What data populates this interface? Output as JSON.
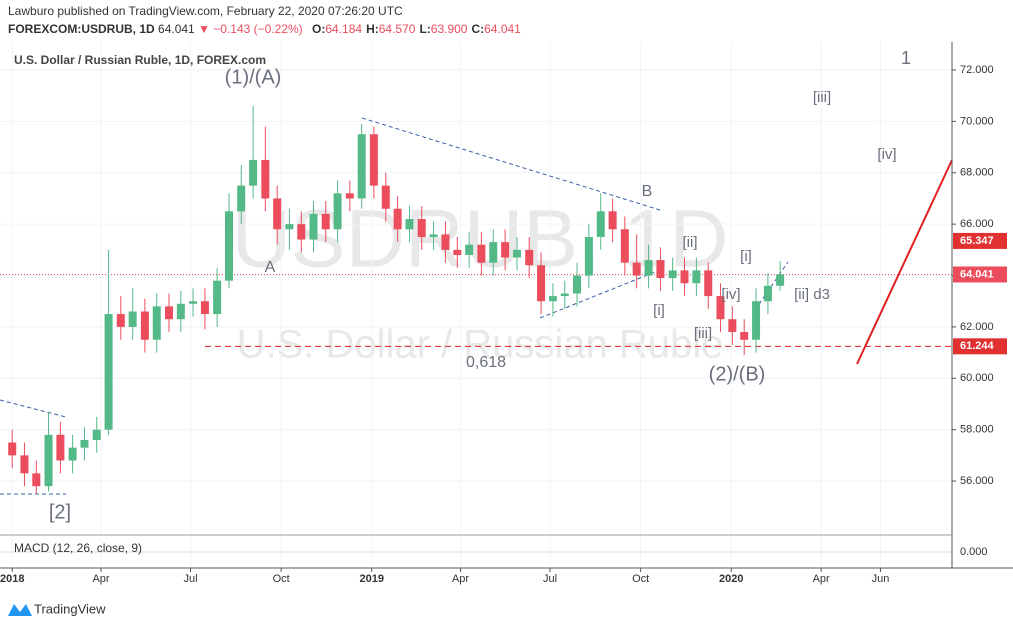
{
  "chart_data": {
    "type": "candlestick",
    "header": {
      "publisher": "Lawburo published on TradingView.com, February 22, 2020 07:26:20 UTC",
      "symbol": "FOREXCOM:USDRUB, 1D",
      "last": "64.041",
      "change": "▼ −0.143 (−0.22%)",
      "ohlc": [
        [
          "O:",
          "64.184"
        ],
        [
          "H:",
          "64.570"
        ],
        [
          "L:",
          "63.900"
        ],
        [
          "C:",
          "64.041"
        ]
      ]
    },
    "title": "U.S. Dollar / Russian Ruble, 1D, FOREX.com",
    "watermark": [
      "USDRUB, 1D",
      "U.S. Dollar / Russian Ruble"
    ],
    "annotations": [
      "(1)/(A)",
      "A",
      "B",
      "[ii]",
      "[i]",
      "[i]",
      "[iii]",
      "[iv]",
      "[ii] d3",
      "0,618",
      "(2)/(B)",
      "[2]",
      "1",
      "[iii]",
      "[iv]"
    ],
    "indicator": "MACD (12, 26, close, 9)",
    "footer": "TradingView",
    "up_color": "#53b987",
    "down_color": "#eb4d5c",
    "x": [
      2018.0,
      2018.034,
      2018.067,
      2018.101,
      2018.134,
      2018.168,
      2018.201,
      2018.235,
      2018.268,
      2018.302,
      2018.335,
      2018.369,
      2018.402,
      2018.436,
      2018.469,
      2018.503,
      2018.536,
      2018.57,
      2018.603,
      2018.637,
      2018.67,
      2018.704,
      2018.737,
      2018.771,
      2018.804,
      2018.838,
      2018.872,
      2018.905,
      2018.939,
      2018.972,
      2019.006,
      2019.039,
      2019.072,
      2019.105,
      2019.139,
      2019.172,
      2019.205,
      2019.238,
      2019.271,
      2019.305,
      2019.338,
      2019.371,
      2019.404,
      2019.438,
      2019.471,
      2019.504,
      2019.537,
      2019.571,
      2019.604,
      2019.637,
      2019.67,
      2019.704,
      2019.737,
      2019.77,
      2019.803,
      2019.837,
      2019.87,
      2019.903,
      2019.936,
      2019.97,
      2020.003,
      2020.036,
      2020.069,
      2020.102,
      2020.136
    ],
    "open": [
      57.5,
      57.0,
      56.3,
      55.8,
      57.8,
      56.8,
      57.3,
      57.6,
      58.0,
      62.5,
      62.0,
      62.6,
      61.5,
      62.8,
      62.3,
      62.9,
      63.0,
      62.5,
      63.8,
      66.5,
      67.5,
      68.5,
      67.0,
      65.8,
      66.0,
      65.4,
      66.4,
      65.8,
      67.2,
      67.0,
      69.5,
      67.5,
      66.6,
      65.8,
      66.2,
      65.5,
      65.6,
      65.0,
      64.8,
      65.2,
      64.5,
      65.3,
      64.7,
      65.0,
      64.4,
      63.0,
      63.2,
      63.3,
      64.0,
      65.5,
      66.5,
      65.8,
      64.5,
      64.0,
      64.6,
      63.9,
      64.2,
      63.7,
      64.2,
      63.2,
      62.3,
      61.8,
      61.5,
      63.0,
      63.6
    ],
    "high": [
      58.0,
      57.5,
      56.8,
      58.7,
      58.3,
      57.8,
      58.1,
      58.5,
      65.0,
      63.2,
      63.5,
      63.1,
      63.3,
      63.3,
      63.4,
      63.5,
      63.5,
      64.3,
      67.2,
      68.3,
      70.6,
      69.8,
      67.5,
      66.6,
      66.5,
      66.9,
      66.9,
      67.7,
      67.7,
      69.9,
      69.8,
      68.0,
      67.1,
      66.7,
      66.7,
      66.1,
      66.1,
      65.5,
      65.7,
      65.7,
      65.8,
      65.8,
      65.5,
      65.5,
      64.9,
      63.7,
      63.8,
      64.5,
      66.0,
      67.2,
      67.0,
      66.3,
      65.6,
      65.2,
      65.1,
      64.7,
      64.7,
      64.7,
      64.5,
      63.7,
      62.8,
      62.3,
      63.5,
      64.1,
      64.57
    ],
    "low": [
      56.5,
      55.8,
      55.5,
      55.6,
      56.3,
      56.3,
      56.8,
      57.1,
      57.8,
      61.5,
      61.5,
      61.0,
      61.0,
      61.8,
      61.8,
      62.4,
      61.9,
      62.0,
      63.5,
      66.0,
      67.0,
      66.5,
      65.2,
      65.0,
      64.9,
      64.9,
      65.3,
      65.3,
      66.5,
      66.6,
      67.0,
      66.1,
      65.3,
      65.3,
      65.0,
      65.0,
      64.5,
      64.3,
      64.3,
      64.0,
      64.0,
      64.2,
      64.2,
      63.9,
      62.5,
      62.4,
      62.7,
      62.8,
      63.5,
      65.0,
      65.3,
      64.0,
      63.5,
      63.5,
      63.4,
      63.4,
      63.2,
      63.2,
      62.7,
      61.8,
      61.3,
      60.9,
      61.0,
      62.5,
      63.4
    ],
    "close": [
      57.0,
      56.3,
      55.8,
      57.8,
      56.8,
      57.3,
      57.6,
      58.0,
      62.5,
      62.0,
      62.6,
      61.5,
      62.8,
      62.3,
      62.9,
      63.0,
      62.5,
      63.8,
      66.5,
      67.5,
      68.5,
      67.0,
      65.8,
      66.0,
      65.4,
      66.4,
      65.8,
      67.2,
      67.0,
      69.5,
      67.5,
      66.6,
      65.8,
      66.2,
      65.5,
      65.6,
      65.0,
      64.8,
      65.2,
      64.5,
      65.3,
      64.7,
      65.0,
      64.4,
      63.0,
      63.2,
      63.3,
      64.0,
      65.5,
      66.5,
      65.8,
      64.5,
      64.0,
      64.6,
      63.9,
      64.2,
      63.7,
      64.2,
      63.2,
      62.3,
      61.8,
      61.5,
      63.0,
      63.6,
      64.041
    ],
    "xlim": [
      2017.966,
      2020.614
    ],
    "xticks": [
      {
        "value": 2018.0,
        "label": "2018"
      },
      {
        "value": 2018.247,
        "label": "Apr"
      },
      {
        "value": 2018.496,
        "label": "Jul"
      },
      {
        "value": 2018.748,
        "label": "Oct"
      },
      {
        "value": 2019.0,
        "label": "2019"
      },
      {
        "value": 2019.247,
        "label": "Apr"
      },
      {
        "value": 2019.496,
        "label": "Jul"
      },
      {
        "value": 2019.748,
        "label": "Oct"
      },
      {
        "value": 2020.0,
        "label": "2020"
      },
      {
        "value": 2020.25,
        "label": "Apr"
      },
      {
        "value": 2020.415,
        "label": "Jun"
      }
    ],
    "ylim": [
      53.9,
      73.09
    ],
    "yticks": [
      {
        "value": 56,
        "label": "56.000"
      },
      {
        "value": 58,
        "label": "58.000"
      },
      {
        "value": 60,
        "label": "60.000"
      },
      {
        "value": 62,
        "label": "62.000"
      },
      {
        "value": 64,
        "label": "64.000"
      },
      {
        "value": 66,
        "label": "66.000"
      },
      {
        "value": 68,
        "label": "68.000"
      },
      {
        "value": 70,
        "label": "70.000"
      },
      {
        "value": 72,
        "label": "72.000"
      }
    ],
    "macd_yticks": [
      {
        "value": 0,
        "label": "0.000"
      }
    ],
    "price_labels": [
      {
        "value": 65.347,
        "label": "65.347"
      },
      {
        "value": 64.041,
        "label": "64.041"
      },
      {
        "value": 61.244,
        "label": "61.244"
      }
    ],
    "grid": true
  }
}
